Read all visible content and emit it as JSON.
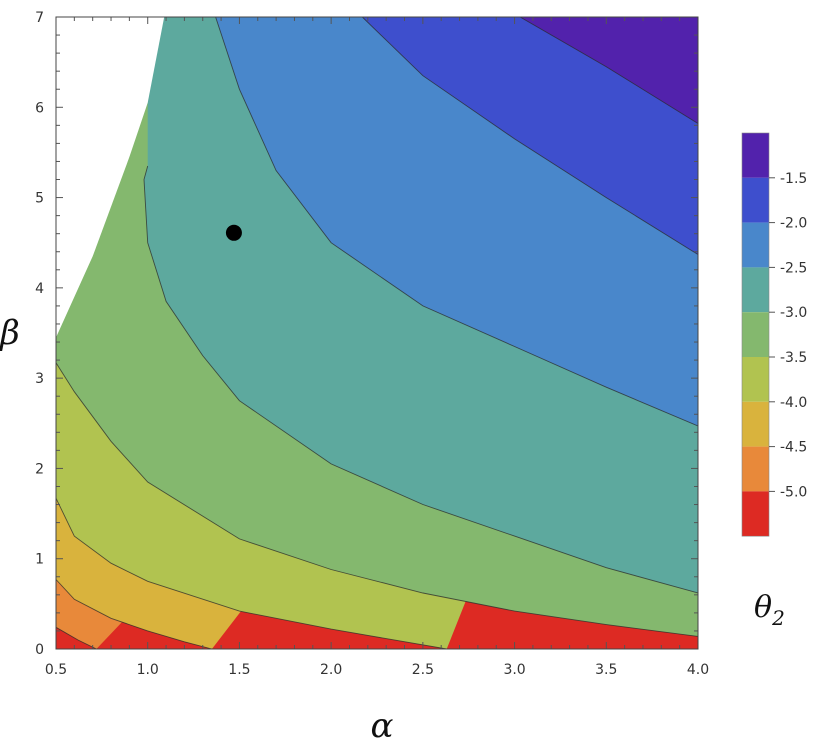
{
  "chart_data": {
    "type": "contour",
    "xlabel": "α",
    "ylabel": "β",
    "xlim": [
      0.5,
      4.0
    ],
    "ylim": [
      0,
      7
    ],
    "x_ticks": [
      "0.5",
      "1.0",
      "1.5",
      "2.0",
      "2.5",
      "3.0",
      "3.5",
      "4.0"
    ],
    "y_ticks": [
      "0",
      "1",
      "2",
      "3",
      "4",
      "5",
      "6",
      "7"
    ],
    "legend": {
      "title": "θ",
      "title_subscript": "2",
      "levels": [
        "-1.5",
        "-2.0",
        "-2.5",
        "-3.0",
        "-3.5",
        "-4.0",
        "-4.5",
        "-5.0"
      ],
      "colors": [
        "#5222ac",
        "#3e4fcd",
        "#4987cb",
        "#5da99e",
        "#84b86e",
        "#b1c350",
        "#d9b33d",
        "#e8893a",
        "#dd2a23"
      ]
    },
    "contour_levels": [
      -5.0,
      -4.5,
      -4.0,
      -3.5,
      -3.0,
      -2.5,
      -2.0,
      -1.5
    ],
    "contour_lines": [
      {
        "level": -5.0,
        "points": [
          [
            0.5,
            0.24
          ],
          [
            0.62,
            0.1
          ],
          [
            0.72,
            0.0
          ]
        ]
      },
      {
        "level": -4.5,
        "points": [
          [
            0.5,
            0.77
          ],
          [
            0.6,
            0.55
          ],
          [
            0.8,
            0.34
          ],
          [
            1.0,
            0.2
          ],
          [
            1.2,
            0.08
          ],
          [
            1.35,
            0.0
          ]
        ]
      },
      {
        "level": -4.0,
        "points": [
          [
            0.5,
            1.67
          ],
          [
            0.6,
            1.25
          ],
          [
            0.8,
            0.95
          ],
          [
            1.0,
            0.75
          ],
          [
            1.5,
            0.42
          ],
          [
            2.0,
            0.22
          ],
          [
            2.63,
            0.0
          ]
        ]
      },
      {
        "level": -3.5,
        "points": [
          [
            0.5,
            3.17
          ],
          [
            0.6,
            2.85
          ],
          [
            0.8,
            2.3
          ],
          [
            1.0,
            1.85
          ],
          [
            1.5,
            1.22
          ],
          [
            2.0,
            0.88
          ],
          [
            2.5,
            0.62
          ],
          [
            3.0,
            0.42
          ],
          [
            3.5,
            0.27
          ],
          [
            4.0,
            0.14
          ]
        ]
      },
      {
        "level": -3.0,
        "points": [
          [
            1.0,
            5.35
          ],
          [
            0.98,
            5.2
          ],
          [
            1.0,
            4.5
          ],
          [
            1.1,
            3.85
          ],
          [
            1.3,
            3.25
          ],
          [
            1.5,
            2.75
          ],
          [
            2.0,
            2.05
          ],
          [
            2.5,
            1.6
          ],
          [
            3.0,
            1.25
          ],
          [
            3.5,
            0.9
          ],
          [
            4.0,
            0.62
          ]
        ]
      },
      {
        "level": -2.5,
        "points": [
          [
            1.37,
            7.0
          ],
          [
            1.5,
            6.2
          ],
          [
            1.7,
            5.3
          ],
          [
            2.0,
            4.5
          ],
          [
            2.5,
            3.8
          ],
          [
            3.0,
            3.35
          ],
          [
            3.5,
            2.9
          ],
          [
            4.0,
            2.47
          ]
        ]
      },
      {
        "level": -2.0,
        "points": [
          [
            2.17,
            7.0
          ],
          [
            2.5,
            6.35
          ],
          [
            3.0,
            5.65
          ],
          [
            3.5,
            5.0
          ],
          [
            4.0,
            4.37
          ]
        ]
      },
      {
        "level": -1.5,
        "points": [
          [
            3.03,
            7.0
          ],
          [
            3.5,
            6.45
          ],
          [
            4.0,
            5.82
          ]
        ]
      }
    ],
    "domain_boundary": [
      [
        0.5,
        3.45
      ],
      [
        0.7,
        4.35
      ],
      [
        0.9,
        5.45
      ],
      [
        1.0,
        6.05
      ],
      [
        1.09,
        7.0
      ]
    ],
    "marked_point": {
      "x": 1.47,
      "y": 4.61
    }
  }
}
